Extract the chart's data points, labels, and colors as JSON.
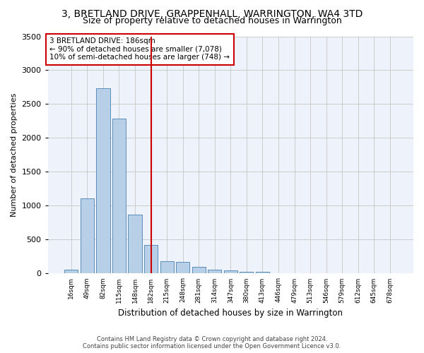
{
  "title": "3, BRETLAND DRIVE, GRAPPENHALL, WARRINGTON, WA4 3TD",
  "subtitle": "Size of property relative to detached houses in Warrington",
  "xlabel": "Distribution of detached houses by size in Warrington",
  "ylabel": "Number of detached properties",
  "categories": [
    "16sqm",
    "49sqm",
    "82sqm",
    "115sqm",
    "148sqm",
    "182sqm",
    "215sqm",
    "248sqm",
    "281sqm",
    "314sqm",
    "347sqm",
    "380sqm",
    "413sqm",
    "446sqm",
    "479sqm",
    "513sqm",
    "546sqm",
    "579sqm",
    "612sqm",
    "645sqm",
    "678sqm"
  ],
  "values": [
    55,
    1110,
    2730,
    2290,
    870,
    420,
    185,
    175,
    95,
    55,
    50,
    30,
    25,
    0,
    0,
    0,
    0,
    0,
    0,
    0,
    0
  ],
  "bar_color": "#b8cfe8",
  "bar_edge_color": "#5b8db8",
  "vline_x": 5,
  "vline_color": "#cc0000",
  "annotation_text": "3 BRETLAND DRIVE: 186sqm\n← 90% of detached houses are smaller (7,078)\n10% of semi-detached houses are larger (748) →",
  "annotation_box_color": "#ffffff",
  "annotation_box_edge": "#cc0000",
  "ylim": [
    0,
    3500
  ],
  "yticks": [
    0,
    500,
    1000,
    1500,
    2000,
    2500,
    3000,
    3500
  ],
  "footer1": "Contains HM Land Registry data © Crown copyright and database right 2024.",
  "footer2": "Contains public sector information licensed under the Open Government Licence v3.0.",
  "bg_color": "#eef2fa",
  "title_fontsize": 10,
  "subtitle_fontsize": 9
}
